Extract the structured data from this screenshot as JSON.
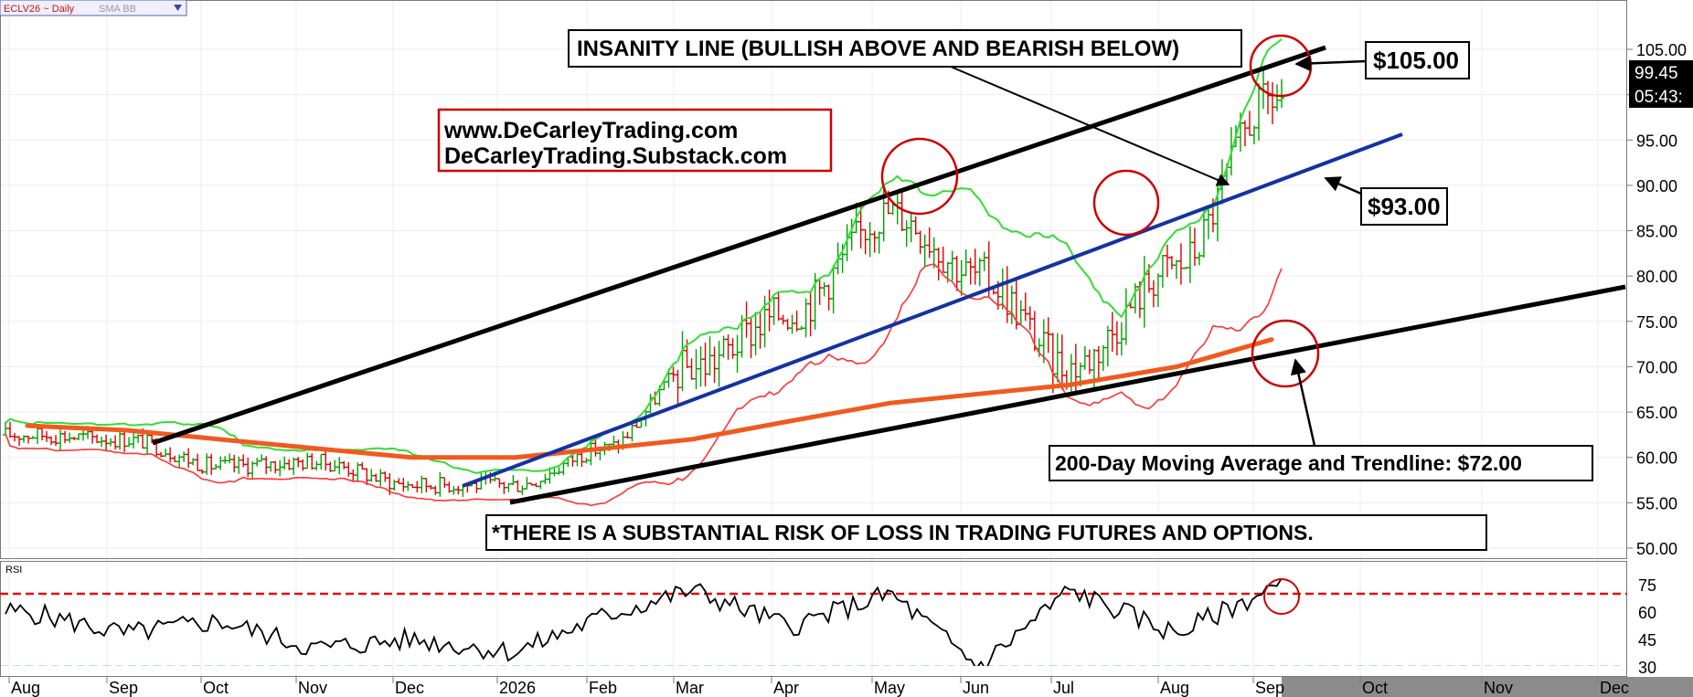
{
  "header": {
    "symbol_label": "ECLV26 ~ Daily",
    "study_label": "SMA BB"
  },
  "colors": {
    "up_bar": "#00a000",
    "down_bar": "#dd0000",
    "bb_upper": "#33dd33",
    "bb_lower": "#ff3333",
    "sma200": "#f05a1e",
    "trend_upper": "#000000",
    "trend_blue": "#1432a0",
    "circle": "#cc0000",
    "rsi_line": "#000000",
    "rsi_upper_guide": "#e01010",
    "rsi_lower_guide": "#1f6fd6",
    "future_axis": "#8c8c8c"
  },
  "annotations": {
    "insanity_line": "INSANITY LINE (BULLISH ABOVE AND BEARISH BELOW)",
    "site_1": "www.DeCarleyTrading.com",
    "site_2": "DeCarleyTrading.Substack.com",
    "price_105": "$105.00",
    "price_93": "$93.00",
    "ma_trend": "200-Day Moving Average and Trendline: $72.00",
    "risk": "*THERE IS A SUBSTANTIAL RISK OF LOSS IN TRADING FUTURES AND OPTIONS."
  },
  "last_price": {
    "value": "99.45",
    "timer": "05:43:"
  },
  "chart_data": [
    {
      "type": "ohlc",
      "name": "price",
      "y_ticks": [
        "105.00",
        "100.00",
        "95.00",
        "90.00",
        "85.00",
        "80.00",
        "75.00",
        "70.00",
        "65.00",
        "60.00",
        "55.00",
        "50.00"
      ],
      "ylim": [
        50,
        105
      ],
      "x_ticks": [
        "Aug",
        "Sep",
        "Oct",
        "Nov",
        "Dec",
        "2026",
        "Feb",
        "Mar",
        "Apr",
        "May",
        "Jun",
        "Jul",
        "Aug",
        "Sep",
        "Oct",
        "Nov",
        "Dec"
      ],
      "key_points": [
        {
          "date": "Aug",
          "close": 62.5
        },
        {
          "date": "Sep",
          "close": 62.0
        },
        {
          "date": "Oct",
          "close": 59.0
        },
        {
          "date": "Nov",
          "close": 59.5
        },
        {
          "date": "Dec",
          "close": 57.0
        },
        {
          "date": "2026",
          "close": 57.0
        },
        {
          "date": "Feb",
          "close": 61.0
        },
        {
          "date": "Mar",
          "close": 70.0
        },
        {
          "date": "Apr",
          "close": 76.0
        },
        {
          "date": "May",
          "close": 87.0
        },
        {
          "date": "Jun",
          "close": 80.0
        },
        {
          "date": "Jul",
          "close": 70.0
        },
        {
          "date": "Aug",
          "close": 81.0
        },
        {
          "date": "Sep",
          "close": 99.45
        }
      ],
      "series": [
        {
          "name": "SMA 200",
          "values": [
            63.5,
            63.0,
            62.0,
            61.0,
            60.0,
            60.0,
            61.0,
            62.0,
            64.0,
            66.0,
            67.0,
            68.0,
            70.0,
            73.0
          ]
        }
      ],
      "lines": [
        {
          "label": "Insanity line",
          "from": [
            "Sep",
            62.0
          ],
          "to": [
            "Sep",
            106.0
          ]
        },
        {
          "label": "Blue trendline",
          "level_end": 93.0
        },
        {
          "label": "Lower trendline",
          "level_end": 72.0
        }
      ]
    },
    {
      "type": "line",
      "name": "RSI",
      "title": "RSI",
      "y_ticks": [
        "75",
        "60",
        "45",
        "30"
      ],
      "ylim": [
        25,
        80
      ],
      "guides": [
        70,
        30
      ],
      "x": [
        "Aug",
        "Sep",
        "Oct",
        "Nov",
        "Dec",
        "2026",
        "Feb",
        "Mar",
        "Apr",
        "May",
        "Jun",
        "Jul",
        "Aug",
        "Sep"
      ],
      "values": [
        60,
        48,
        55,
        40,
        45,
        38,
        58,
        72,
        52,
        70,
        30,
        72,
        48,
        73
      ]
    }
  ]
}
